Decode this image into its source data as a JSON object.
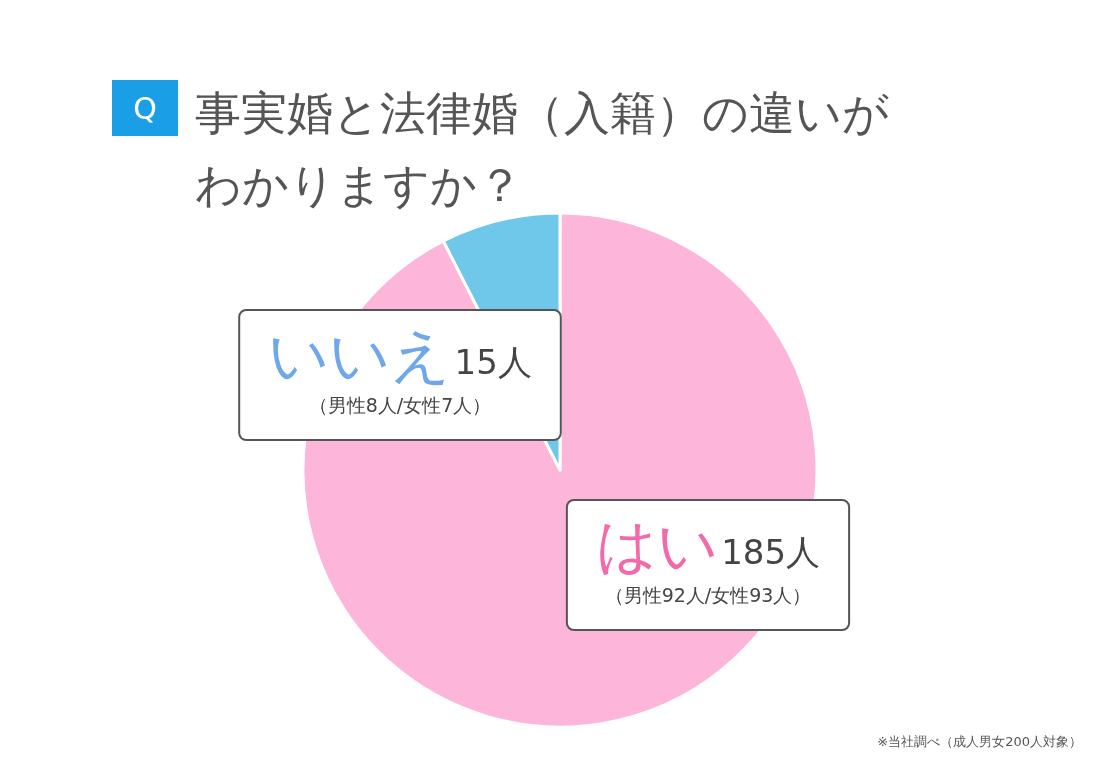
{
  "chart_data": {
    "type": "pie",
    "title": "事実婚と法律婚（入籍）の違いがわかりますか？",
    "categories": [
      "はい",
      "いいえ"
    ],
    "values": [
      185,
      15
    ],
    "colors": [
      "#fdb6da",
      "#6fc7ea"
    ],
    "value_labels": [
      "185人",
      "15人"
    ],
    "annotations": [
      "Q",
      "（男性92人/女性93人）",
      "（男性8人/女性7人）",
      "※当社調べ（成人男女200人対象）"
    ]
  }
}
